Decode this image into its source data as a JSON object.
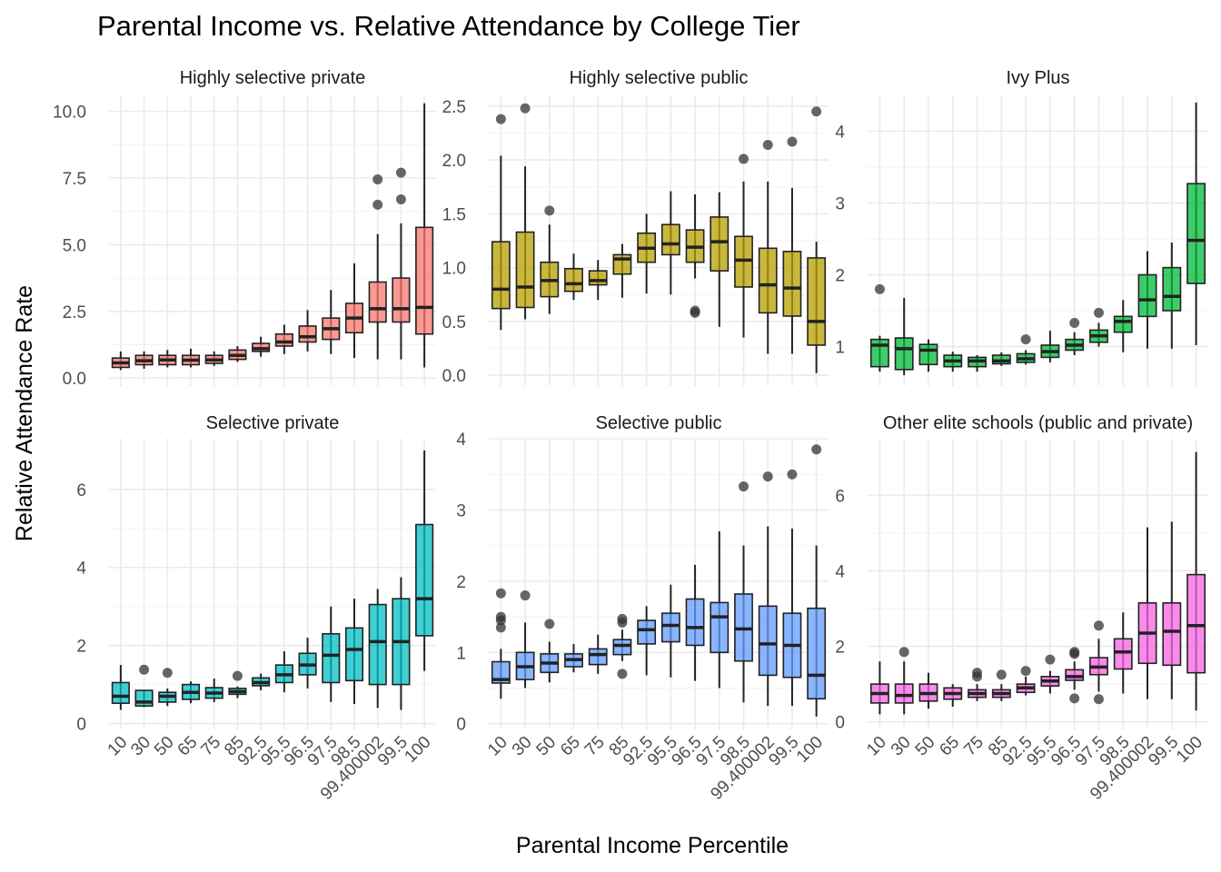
{
  "chart_data": {
    "type": "box",
    "title": "Parental Income vs. Relative Attendance by College Tier",
    "xlabel": "Parental Income Percentile",
    "ylabel": "Relative Attendance Rate",
    "grid": true,
    "legend": "none",
    "categories": [
      "10",
      "30",
      "50",
      "65",
      "75",
      "85",
      "92.5",
      "95.5",
      "96.5",
      "97.5",
      "98.5",
      "99.400002",
      "99.5",
      "100"
    ],
    "panels": [
      {
        "name": "Highly selective private",
        "color": "#F8766D",
        "ylim": [
          -0.3,
          10.6
        ],
        "yticks": [
          0.0,
          2.5,
          5.0,
          7.5,
          10.0
        ],
        "ytick_labels": [
          "0.0",
          "2.5",
          "5.0",
          "7.5",
          "10.0"
        ],
        "boxes": [
          {
            "lw": 0.3,
            "q1": 0.4,
            "med": 0.57,
            "q3": 0.75,
            "uw": 1.0,
            "out": []
          },
          {
            "lw": 0.35,
            "q1": 0.5,
            "med": 0.65,
            "q3": 0.85,
            "uw": 1.0,
            "out": []
          },
          {
            "lw": 0.4,
            "q1": 0.5,
            "med": 0.68,
            "q3": 0.85,
            "uw": 1.05,
            "out": []
          },
          {
            "lw": 0.4,
            "q1": 0.5,
            "med": 0.67,
            "q3": 0.85,
            "uw": 1.1,
            "out": []
          },
          {
            "lw": 0.45,
            "q1": 0.55,
            "med": 0.68,
            "q3": 0.85,
            "uw": 1.0,
            "out": []
          },
          {
            "lw": 0.6,
            "q1": 0.7,
            "med": 0.85,
            "q3": 1.05,
            "uw": 1.2,
            "out": []
          },
          {
            "lw": 0.8,
            "q1": 1.0,
            "med": 1.1,
            "q3": 1.3,
            "uw": 1.55,
            "out": []
          },
          {
            "lw": 0.9,
            "q1": 1.2,
            "med": 1.35,
            "q3": 1.65,
            "uw": 2.0,
            "out": []
          },
          {
            "lw": 1.0,
            "q1": 1.35,
            "med": 1.55,
            "q3": 1.95,
            "uw": 2.55,
            "out": []
          },
          {
            "lw": 0.9,
            "q1": 1.45,
            "med": 1.85,
            "q3": 2.25,
            "uw": 3.3,
            "out": []
          },
          {
            "lw": 0.75,
            "q1": 1.7,
            "med": 2.25,
            "q3": 2.8,
            "uw": 4.3,
            "out": []
          },
          {
            "lw": 0.7,
            "q1": 2.1,
            "med": 2.6,
            "q3": 3.6,
            "uw": 5.4,
            "out": [
              6.5,
              7.45
            ]
          },
          {
            "lw": 0.7,
            "q1": 2.1,
            "med": 2.6,
            "q3": 3.75,
            "uw": 5.8,
            "out": [
              6.7,
              7.7
            ]
          },
          {
            "lw": 0.4,
            "q1": 1.65,
            "med": 2.65,
            "q3": 5.65,
            "uw": 10.3,
            "out": []
          }
        ]
      },
      {
        "name": "Highly selective public",
        "color": "#B79F00",
        "ylim": [
          -0.1,
          2.6
        ],
        "yticks": [
          0.0,
          0.5,
          1.0,
          1.5,
          2.0,
          2.5
        ],
        "ytick_labels": [
          "0.0",
          "0.5",
          "1.0",
          "1.5",
          "2.0",
          "2.5"
        ],
        "boxes": [
          {
            "lw": 0.42,
            "q1": 0.62,
            "med": 0.8,
            "q3": 1.24,
            "uw": 2.04,
            "out": [
              2.38
            ]
          },
          {
            "lw": 0.52,
            "q1": 0.63,
            "med": 0.82,
            "q3": 1.33,
            "uw": 1.94,
            "out": [
              2.48
            ]
          },
          {
            "lw": 0.57,
            "q1": 0.73,
            "med": 0.88,
            "q3": 1.05,
            "uw": 1.4,
            "out": [
              1.53
            ]
          },
          {
            "lw": 0.7,
            "q1": 0.78,
            "med": 0.85,
            "q3": 0.99,
            "uw": 1.13,
            "out": []
          },
          {
            "lw": 0.7,
            "q1": 0.84,
            "med": 0.88,
            "q3": 0.97,
            "uw": 1.07,
            "out": []
          },
          {
            "lw": 0.72,
            "q1": 0.94,
            "med": 1.08,
            "q3": 1.12,
            "uw": 1.22,
            "out": []
          },
          {
            "lw": 0.76,
            "q1": 1.05,
            "med": 1.18,
            "q3": 1.32,
            "uw": 1.5,
            "out": []
          },
          {
            "lw": 0.75,
            "q1": 1.12,
            "med": 1.22,
            "q3": 1.4,
            "uw": 1.71,
            "out": []
          },
          {
            "lw": 0.9,
            "q1": 1.05,
            "med": 1.19,
            "q3": 1.35,
            "uw": 1.68,
            "out": [
              0.58,
              0.6
            ]
          },
          {
            "lw": 0.45,
            "q1": 0.97,
            "med": 1.24,
            "q3": 1.47,
            "uw": 1.7,
            "out": []
          },
          {
            "lw": 0.35,
            "q1": 0.82,
            "med": 1.07,
            "q3": 1.29,
            "uw": 1.8,
            "out": [
              2.01
            ]
          },
          {
            "lw": 0.2,
            "q1": 0.58,
            "med": 0.84,
            "q3": 1.18,
            "uw": 1.8,
            "out": [
              2.14
            ]
          },
          {
            "lw": 0.2,
            "q1": 0.55,
            "med": 0.81,
            "q3": 1.15,
            "uw": 1.74,
            "out": [
              2.17
            ]
          },
          {
            "lw": 0.02,
            "q1": 0.28,
            "med": 0.5,
            "q3": 1.09,
            "uw": 1.24,
            "out": [
              2.45
            ]
          }
        ]
      },
      {
        "name": "Ivy Plus",
        "color": "#00BA38",
        "ylim": [
          0.45,
          4.5
        ],
        "yticks": [
          1,
          2,
          3,
          4
        ],
        "ytick_labels": [
          "1",
          "2",
          "3",
          "4"
        ],
        "boxes": [
          {
            "lw": 0.65,
            "q1": 0.72,
            "med": 1.02,
            "q3": 1.1,
            "uw": 1.15,
            "out": [
              1.8
            ]
          },
          {
            "lw": 0.6,
            "q1": 0.68,
            "med": 0.97,
            "q3": 1.12,
            "uw": 1.68,
            "out": []
          },
          {
            "lw": 0.65,
            "q1": 0.75,
            "med": 0.95,
            "q3": 1.03,
            "uw": 1.1,
            "out": []
          },
          {
            "lw": 0.65,
            "q1": 0.72,
            "med": 0.8,
            "q3": 0.88,
            "uw": 0.93,
            "out": []
          },
          {
            "lw": 0.65,
            "q1": 0.72,
            "med": 0.8,
            "q3": 0.85,
            "uw": 0.88,
            "out": []
          },
          {
            "lw": 0.73,
            "q1": 0.76,
            "med": 0.8,
            "q3": 0.88,
            "uw": 0.92,
            "out": []
          },
          {
            "lw": 0.75,
            "q1": 0.78,
            "med": 0.83,
            "q3": 0.9,
            "uw": 0.95,
            "out": [
              1.1
            ]
          },
          {
            "lw": 0.78,
            "q1": 0.85,
            "med": 0.93,
            "q3": 1.02,
            "uw": 1.22,
            "out": []
          },
          {
            "lw": 0.88,
            "q1": 0.95,
            "med": 1.02,
            "q3": 1.1,
            "uw": 1.2,
            "out": [
              1.33
            ]
          },
          {
            "lw": 1.0,
            "q1": 1.06,
            "med": 1.15,
            "q3": 1.23,
            "uw": 1.33,
            "out": [
              1.47
            ]
          },
          {
            "lw": 0.92,
            "q1": 1.2,
            "med": 1.35,
            "q3": 1.42,
            "uw": 1.65,
            "out": []
          },
          {
            "lw": 0.97,
            "q1": 1.42,
            "med": 1.65,
            "q3": 2.0,
            "uw": 2.33,
            "out": []
          },
          {
            "lw": 0.97,
            "q1": 1.5,
            "med": 1.7,
            "q3": 2.1,
            "uw": 2.45,
            "out": []
          },
          {
            "lw": 1.02,
            "q1": 1.88,
            "med": 2.48,
            "q3": 3.27,
            "uw": 4.4,
            "out": []
          }
        ]
      },
      {
        "name": "Selective private",
        "color": "#00BFC4",
        "ylim": [
          -0.15,
          7.3
        ],
        "yticks": [
          0,
          2,
          4,
          6
        ],
        "ytick_labels": [
          "0",
          "2",
          "4",
          "6"
        ],
        "boxes": [
          {
            "lw": 0.35,
            "q1": 0.52,
            "med": 0.7,
            "q3": 1.05,
            "uw": 1.5,
            "out": []
          },
          {
            "lw": 0.42,
            "q1": 0.45,
            "med": 0.55,
            "q3": 0.85,
            "uw": 0.85,
            "out": [
              1.38
            ]
          },
          {
            "lw": 0.45,
            "q1": 0.55,
            "med": 0.7,
            "q3": 0.8,
            "uw": 0.9,
            "out": [
              1.3
            ]
          },
          {
            "lw": 0.52,
            "q1": 0.62,
            "med": 0.8,
            "q3": 1.0,
            "uw": 1.08,
            "out": []
          },
          {
            "lw": 0.55,
            "q1": 0.65,
            "med": 0.78,
            "q3": 0.92,
            "uw": 1.15,
            "out": []
          },
          {
            "lw": 0.65,
            "q1": 0.75,
            "med": 0.82,
            "q3": 0.9,
            "uw": 0.95,
            "out": [
              1.22
            ]
          },
          {
            "lw": 0.85,
            "q1": 0.97,
            "med": 1.05,
            "q3": 1.17,
            "uw": 1.28,
            "out": []
          },
          {
            "lw": 0.8,
            "q1": 1.05,
            "med": 1.25,
            "q3": 1.5,
            "uw": 1.85,
            "out": []
          },
          {
            "lw": 0.9,
            "q1": 1.25,
            "med": 1.5,
            "q3": 1.8,
            "uw": 2.2,
            "out": []
          },
          {
            "lw": 0.55,
            "q1": 1.05,
            "med": 1.75,
            "q3": 2.3,
            "uw": 3.0,
            "out": []
          },
          {
            "lw": 0.5,
            "q1": 1.1,
            "med": 1.9,
            "q3": 2.45,
            "uw": 3.2,
            "out": []
          },
          {
            "lw": 0.4,
            "q1": 1.0,
            "med": 2.1,
            "q3": 3.05,
            "uw": 3.45,
            "out": []
          },
          {
            "lw": 0.35,
            "q1": 1.0,
            "med": 2.1,
            "q3": 3.2,
            "uw": 3.75,
            "out": []
          },
          {
            "lw": 1.35,
            "q1": 2.25,
            "med": 3.2,
            "q3": 5.1,
            "uw": 7.0,
            "out": []
          }
        ]
      },
      {
        "name": "Selective public",
        "color": "#619CFF",
        "ylim": [
          -0.08,
          4.0
        ],
        "yticks": [
          0,
          1,
          2,
          3,
          4
        ],
        "ytick_labels": [
          "0",
          "1",
          "2",
          "3",
          "4"
        ],
        "boxes": [
          {
            "lw": 0.35,
            "q1": 0.57,
            "med": 0.62,
            "q3": 0.87,
            "uw": 1.05,
            "out": [
              1.35,
              1.45,
              1.5,
              1.83
            ]
          },
          {
            "lw": 0.5,
            "q1": 0.62,
            "med": 0.8,
            "q3": 1.0,
            "uw": 1.42,
            "out": [
              1.8
            ]
          },
          {
            "lw": 0.58,
            "q1": 0.72,
            "med": 0.85,
            "q3": 0.98,
            "uw": 1.15,
            "out": [
              1.4
            ]
          },
          {
            "lw": 0.72,
            "q1": 0.8,
            "med": 0.9,
            "q3": 0.98,
            "uw": 1.12,
            "out": []
          },
          {
            "lw": 0.7,
            "q1": 0.83,
            "med": 0.97,
            "q3": 1.05,
            "uw": 1.25,
            "out": []
          },
          {
            "lw": 0.88,
            "q1": 0.97,
            "med": 1.1,
            "q3": 1.18,
            "uw": 1.32,
            "out": [
              0.7,
              1.42,
              1.47
            ]
          },
          {
            "lw": 0.68,
            "q1": 1.12,
            "med": 1.32,
            "q3": 1.45,
            "uw": 1.65,
            "out": []
          },
          {
            "lw": 0.65,
            "q1": 1.15,
            "med": 1.38,
            "q3": 1.55,
            "uw": 1.95,
            "out": []
          },
          {
            "lw": 0.6,
            "q1": 1.1,
            "med": 1.35,
            "q3": 1.75,
            "uw": 2.23,
            "out": []
          },
          {
            "lw": 0.5,
            "q1": 1.0,
            "med": 1.5,
            "q3": 1.7,
            "uw": 2.7,
            "out": []
          },
          {
            "lw": 0.3,
            "q1": 0.88,
            "med": 1.33,
            "q3": 1.82,
            "uw": 2.5,
            "out": [
              3.33
            ]
          },
          {
            "lw": 0.25,
            "q1": 0.68,
            "med": 1.12,
            "q3": 1.65,
            "uw": 2.77,
            "out": [
              3.47
            ]
          },
          {
            "lw": 0.25,
            "q1": 0.65,
            "med": 1.1,
            "q3": 1.55,
            "uw": 2.74,
            "out": [
              3.5
            ]
          },
          {
            "lw": 0.1,
            "q1": 0.35,
            "med": 0.68,
            "q3": 1.62,
            "uw": 2.5,
            "out": [
              3.85
            ]
          }
        ]
      },
      {
        "name": "Other elite schools (public and private)",
        "color": "#F564E3",
        "ylim": [
          -0.2,
          7.5
        ],
        "yticks": [
          0,
          2,
          4,
          6
        ],
        "ytick_labels": [
          "0",
          "2",
          "4",
          "6"
        ],
        "boxes": [
          {
            "lw": 0.2,
            "q1": 0.5,
            "med": 0.75,
            "q3": 1.0,
            "uw": 1.6,
            "out": []
          },
          {
            "lw": 0.2,
            "q1": 0.5,
            "med": 0.7,
            "q3": 1.0,
            "uw": 1.6,
            "out": [
              1.85
            ]
          },
          {
            "lw": 0.35,
            "q1": 0.55,
            "med": 0.75,
            "q3": 1.0,
            "uw": 1.3,
            "out": []
          },
          {
            "lw": 0.4,
            "q1": 0.6,
            "med": 0.75,
            "q3": 0.9,
            "uw": 1.0,
            "out": []
          },
          {
            "lw": 0.55,
            "q1": 0.65,
            "med": 0.75,
            "q3": 0.85,
            "uw": 1.0,
            "out": [
              1.2,
              1.3
            ]
          },
          {
            "lw": 0.55,
            "q1": 0.65,
            "med": 0.75,
            "q3": 0.85,
            "uw": 1.0,
            "out": [
              1.25
            ]
          },
          {
            "lw": 0.7,
            "q1": 0.78,
            "med": 0.9,
            "q3": 1.0,
            "uw": 1.2,
            "out": [
              1.35
            ]
          },
          {
            "lw": 0.75,
            "q1": 0.95,
            "med": 1.08,
            "q3": 1.2,
            "uw": 1.35,
            "out": [
              1.65
            ]
          },
          {
            "lw": 0.85,
            "q1": 1.1,
            "med": 1.2,
            "q3": 1.38,
            "uw": 1.6,
            "out": [
              0.62,
              1.8,
              1.85
            ]
          },
          {
            "lw": 0.8,
            "q1": 1.25,
            "med": 1.45,
            "q3": 1.7,
            "uw": 2.2,
            "out": [
              0.6,
              2.55
            ]
          },
          {
            "lw": 0.75,
            "q1": 1.4,
            "med": 1.85,
            "q3": 2.2,
            "uw": 2.9,
            "out": []
          },
          {
            "lw": 0.6,
            "q1": 1.55,
            "med": 2.35,
            "q3": 3.15,
            "uw": 5.15,
            "out": []
          },
          {
            "lw": 0.6,
            "q1": 1.5,
            "med": 2.4,
            "q3": 3.15,
            "uw": 5.3,
            "out": []
          },
          {
            "lw": 0.3,
            "q1": 1.3,
            "med": 2.55,
            "q3": 3.9,
            "uw": 7.15,
            "out": []
          }
        ]
      }
    ]
  }
}
